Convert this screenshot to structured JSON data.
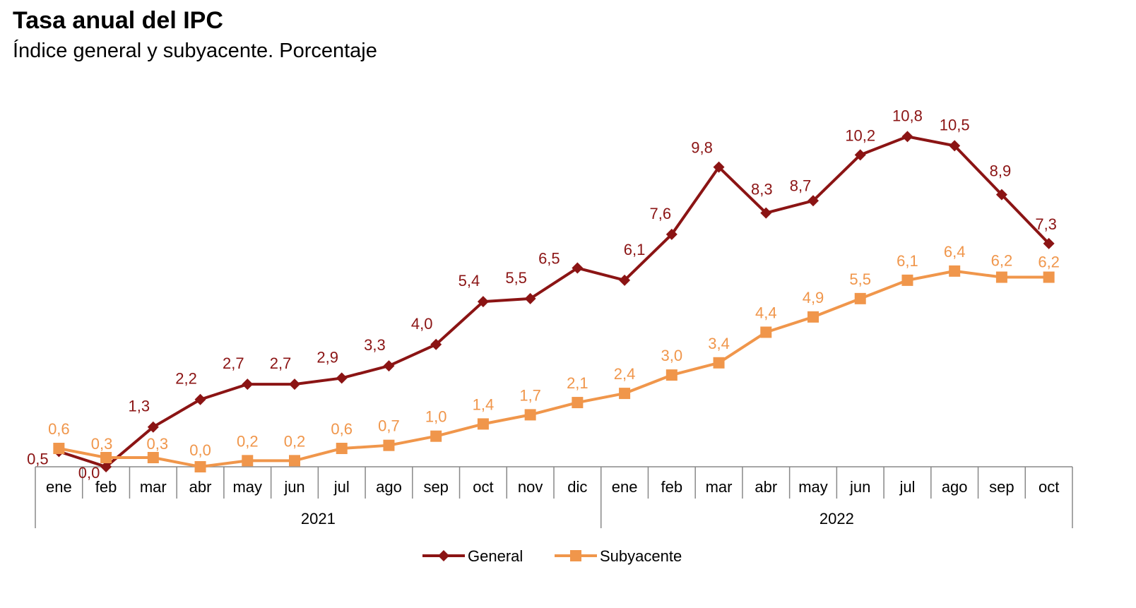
{
  "title": "Tasa anual del IPC",
  "subtitle": "Índice general y subyacente. Porcentaje",
  "chart_data": {
    "type": "line",
    "categories": [
      "ene",
      "feb",
      "mar",
      "abr",
      "may",
      "jun",
      "jul",
      "ago",
      "sep",
      "oct",
      "nov",
      "dic",
      "ene",
      "feb",
      "mar",
      "abr",
      "may",
      "jun",
      "jul",
      "ago",
      "sep",
      "oct"
    ],
    "years": [
      {
        "label": "2021",
        "months": 12
      },
      {
        "label": "2022",
        "months": 10
      }
    ],
    "series": [
      {
        "name": "General",
        "color": "#8b1414",
        "marker": "diamond",
        "values": [
          0.5,
          0.0,
          1.3,
          2.2,
          2.7,
          2.7,
          2.9,
          3.3,
          4.0,
          5.4,
          5.5,
          6.5,
          6.1,
          7.6,
          9.8,
          8.3,
          8.7,
          10.2,
          10.8,
          10.5,
          8.9,
          7.3
        ],
        "labels": [
          "0,5",
          "0,0",
          "1,3",
          "2,2",
          "2,7",
          "2,7",
          "2,9",
          "3,3",
          "4,0",
          "5,4",
          "5,5",
          "6,5",
          "6,1",
          "7,6",
          "9,8",
          "8,3",
          "8,7",
          "10,2",
          "10,8",
          "10,5",
          "8,9",
          "7,3"
        ]
      },
      {
        "name": "Subyacente",
        "color": "#f0964b",
        "marker": "square",
        "values": [
          0.6,
          0.3,
          0.3,
          0.0,
          0.2,
          0.2,
          0.6,
          0.7,
          1.0,
          1.4,
          1.7,
          2.1,
          2.4,
          3.0,
          3.4,
          4.4,
          4.9,
          5.5,
          6.1,
          6.4,
          6.2,
          6.2
        ],
        "labels": [
          "0,6",
          "0,3",
          "0,3",
          "0,0",
          "0,2",
          "0,2",
          "0,6",
          "0,7",
          "1,0",
          "1,4",
          "1,7",
          "2,1",
          "2,4",
          "3,0",
          "3,4",
          "4,4",
          "4,9",
          "5,5",
          "6,1",
          "6,4",
          "6,2",
          "6,2"
        ]
      }
    ],
    "ylim": [
      0,
      12
    ],
    "legend": "bottom-center",
    "xlabel": "",
    "ylabel": ""
  }
}
